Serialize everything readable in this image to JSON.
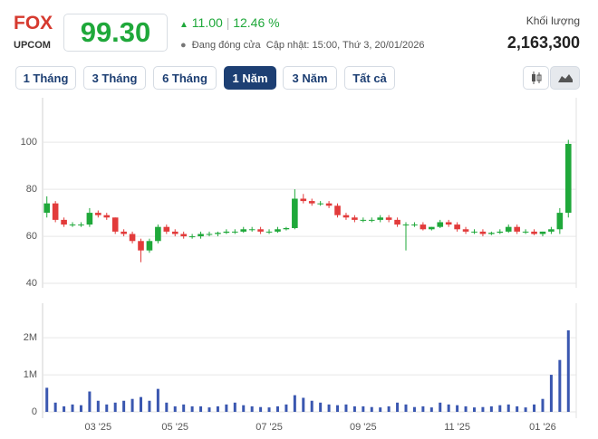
{
  "header": {
    "ticker": "FOX",
    "exchange": "UPCOM",
    "price": "99.30",
    "change": "11.00",
    "change_pct": "12.46 %",
    "status": "Đang đóng cửa",
    "updated": "Cập nhật: 15:00, Thứ 3, 20/01/2026",
    "volume_label": "Khối lượng",
    "volume": "2,163,300",
    "ranges": [
      "1 Tháng",
      "3 Tháng",
      "6 Tháng",
      "1 Năm",
      "3 Năm",
      "Tất cả"
    ],
    "active_range": 3
  },
  "chart_data": {
    "type": "candlestick",
    "up_color": "#1fa83a",
    "down_color": "#e23b3b",
    "volume_color": "#3a57b0",
    "grid": true,
    "categories": [
      null,
      null,
      null,
      null,
      null,
      null,
      "03 '25",
      null,
      null,
      null,
      null,
      null,
      null,
      null,
      null,
      "05 '25",
      null,
      null,
      null,
      null,
      null,
      null,
      null,
      null,
      null,
      null,
      "07 '25",
      null,
      null,
      null,
      null,
      null,
      null,
      null,
      null,
      null,
      null,
      "09 '25",
      null,
      null,
      null,
      null,
      null,
      null,
      null,
      null,
      null,
      null,
      "11 '25",
      null,
      null,
      null,
      null,
      null,
      null,
      null,
      null,
      null,
      "01 '26",
      null,
      null,
      null
    ],
    "open": [
      70,
      74,
      67,
      65,
      65,
      65,
      70,
      69,
      68,
      62,
      61,
      58,
      54,
      58,
      64,
      62,
      61,
      60,
      60,
      61,
      61,
      61.5,
      62,
      62,
      63,
      63,
      62,
      62,
      63,
      63.5,
      76,
      75,
      74,
      74,
      73,
      69,
      68,
      67,
      67,
      67,
      68,
      67,
      65,
      65,
      65,
      63,
      64,
      66,
      65,
      63,
      62,
      62,
      61,
      61.5,
      62,
      64,
      62,
      62,
      61,
      62,
      63,
      70
    ],
    "high": [
      77,
      75,
      68,
      66,
      66,
      72,
      71,
      70,
      68,
      63,
      62,
      59,
      59,
      65,
      65,
      63,
      62,
      61,
      62,
      62,
      62,
      63,
      63,
      64,
      64,
      64,
      63,
      64,
      64,
      80,
      78,
      76,
      75,
      75,
      74,
      70,
      69,
      68,
      68,
      69,
      69,
      68,
      66,
      66,
      66,
      64,
      67,
      67,
      66,
      64,
      63,
      63,
      62,
      63,
      65,
      65,
      63,
      63,
      62,
      64,
      72,
      101
    ],
    "low": [
      68,
      66,
      64,
      64,
      64,
      64,
      68,
      67,
      61,
      60,
      57,
      49,
      53,
      57,
      61,
      60,
      59,
      59,
      59,
      60,
      60,
      61,
      61,
      61.5,
      62,
      61,
      61,
      61.5,
      62.5,
      63,
      74,
      73,
      73,
      72,
      68,
      67,
      66,
      66,
      66,
      66,
      66,
      64,
      54,
      64,
      62.5,
      62.5,
      63.5,
      64,
      62,
      61,
      61,
      60,
      60.5,
      61,
      61.5,
      61,
      61,
      60.5,
      60,
      61,
      61,
      68
    ],
    "close": [
      74,
      67,
      65,
      65,
      65,
      70,
      69,
      68,
      62,
      61,
      58,
      54,
      58,
      64,
      62,
      61,
      60,
      60,
      61,
      61,
      61.5,
      62,
      62,
      63,
      63,
      62,
      62,
      63,
      63.5,
      76,
      75,
      74,
      74,
      73,
      69,
      68,
      67,
      67,
      67,
      68,
      67,
      65,
      65,
      65,
      63,
      64,
      66,
      65,
      63,
      62,
      62,
      61,
      61.5,
      62,
      64,
      62,
      62,
      61,
      62,
      63,
      70,
      99.3
    ],
    "volume": [
      650000,
      250000,
      150000,
      200000,
      180000,
      550000,
      300000,
      200000,
      250000,
      300000,
      350000,
      400000,
      300000,
      620000,
      250000,
      150000,
      200000,
      150000,
      150000,
      120000,
      150000,
      200000,
      250000,
      180000,
      150000,
      130000,
      120000,
      150000,
      200000,
      450000,
      380000,
      300000,
      250000,
      200000,
      180000,
      200000,
      150000,
      150000,
      130000,
      120000,
      150000,
      250000,
      200000,
      130000,
      150000,
      120000,
      250000,
      200000,
      180000,
      150000,
      120000,
      130000,
      150000,
      180000,
      200000,
      150000,
      120000,
      200000,
      350000,
      1000000,
      1400000,
      2200000
    ],
    "ylim": [
      38.1,
      118.9
    ],
    "yticks": [
      40,
      60,
      80,
      100
    ],
    "vlim": [
      -170000,
      2930000
    ],
    "vticks": [
      0,
      {
        "value": 1000000,
        "label": "1M"
      },
      {
        "value": 2000000,
        "label": "2M"
      }
    ]
  }
}
